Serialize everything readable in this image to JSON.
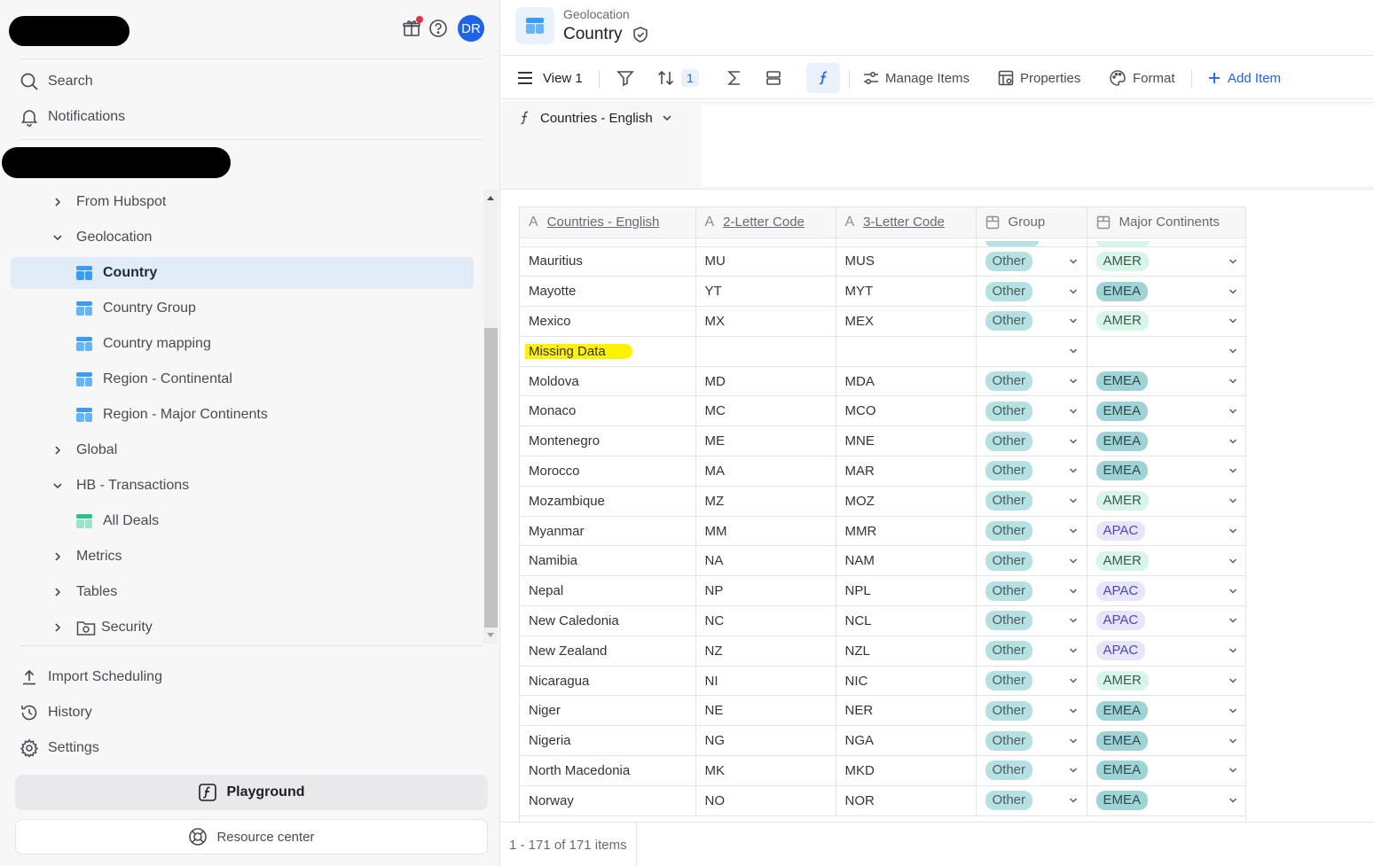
{
  "sidebar": {
    "avatar_initials": "DR",
    "search_label": "Search",
    "notifications_label": "Notifications",
    "tree": [
      {
        "label": "From Hubspot",
        "kind": "folder",
        "expanded": false
      },
      {
        "label": "Geolocation",
        "kind": "folder",
        "expanded": true
      },
      {
        "label": "Country",
        "kind": "table",
        "selected": true
      },
      {
        "label": "Country Group",
        "kind": "table"
      },
      {
        "label": "Country mapping",
        "kind": "table"
      },
      {
        "label": "Region - Continental",
        "kind": "table"
      },
      {
        "label": "Region - Major Continents",
        "kind": "table"
      },
      {
        "label": "Global",
        "kind": "folder",
        "expanded": false
      },
      {
        "label": "HB - Transactions",
        "kind": "folder",
        "expanded": true
      },
      {
        "label": "All Deals",
        "kind": "table-green"
      },
      {
        "label": "Metrics",
        "kind": "folder",
        "expanded": false
      },
      {
        "label": "Tables",
        "kind": "folder",
        "expanded": false
      },
      {
        "label": "Security",
        "kind": "folder",
        "expanded": false
      }
    ],
    "import_label": "Import Scheduling",
    "history_label": "History",
    "settings_label": "Settings",
    "playground_label": "Playground",
    "resource_label": "Resource center"
  },
  "header": {
    "breadcrumb": "Geolocation",
    "title": "Country"
  },
  "toolbar": {
    "view_label": "View 1",
    "sort_count": "1",
    "manage_label": "Manage Items",
    "properties_label": "Properties",
    "format_label": "Format",
    "add_label": "Add Item"
  },
  "formula": {
    "field": "Countries - English"
  },
  "grid": {
    "columns": [
      "Countries - English",
      "2-Letter Code",
      "3-Letter Code",
      "Group",
      "Major Continents"
    ],
    "rows": [
      [
        "Mauritius",
        "MU",
        "MUS",
        "Other",
        "AMER"
      ],
      [
        "Mayotte",
        "YT",
        "MYT",
        "Other",
        "EMEA"
      ],
      [
        "Mexico",
        "MX",
        "MEX",
        "Other",
        "AMER"
      ],
      [
        "Missing Data",
        "",
        "",
        "",
        ""
      ],
      [
        "Moldova",
        "MD",
        "MDA",
        "Other",
        "EMEA"
      ],
      [
        "Monaco",
        "MC",
        "MCO",
        "Other",
        "EMEA"
      ],
      [
        "Montenegro",
        "ME",
        "MNE",
        "Other",
        "EMEA"
      ],
      [
        "Morocco",
        "MA",
        "MAR",
        "Other",
        "EMEA"
      ],
      [
        "Mozambique",
        "MZ",
        "MOZ",
        "Other",
        "AMER"
      ],
      [
        "Myanmar",
        "MM",
        "MMR",
        "Other",
        "APAC"
      ],
      [
        "Namibia",
        "NA",
        "NAM",
        "Other",
        "AMER"
      ],
      [
        "Nepal",
        "NP",
        "NPL",
        "Other",
        "APAC"
      ],
      [
        "New Caledonia",
        "NC",
        "NCL",
        "Other",
        "APAC"
      ],
      [
        "New Zealand",
        "NZ",
        "NZL",
        "Other",
        "APAC"
      ],
      [
        "Nicaragua",
        "NI",
        "NIC",
        "Other",
        "AMER"
      ],
      [
        "Niger",
        "NE",
        "NER",
        "Other",
        "EMEA"
      ],
      [
        "Nigeria",
        "NG",
        "NGA",
        "Other",
        "EMEA"
      ],
      [
        "North Macedonia",
        "MK",
        "MKD",
        "Other",
        "EMEA"
      ],
      [
        "Norway",
        "NO",
        "NOR",
        "Other",
        "EMEA"
      ]
    ],
    "highlight_row": "Missing Data"
  },
  "footer": {
    "count": "1 - 171 of 171 items"
  }
}
